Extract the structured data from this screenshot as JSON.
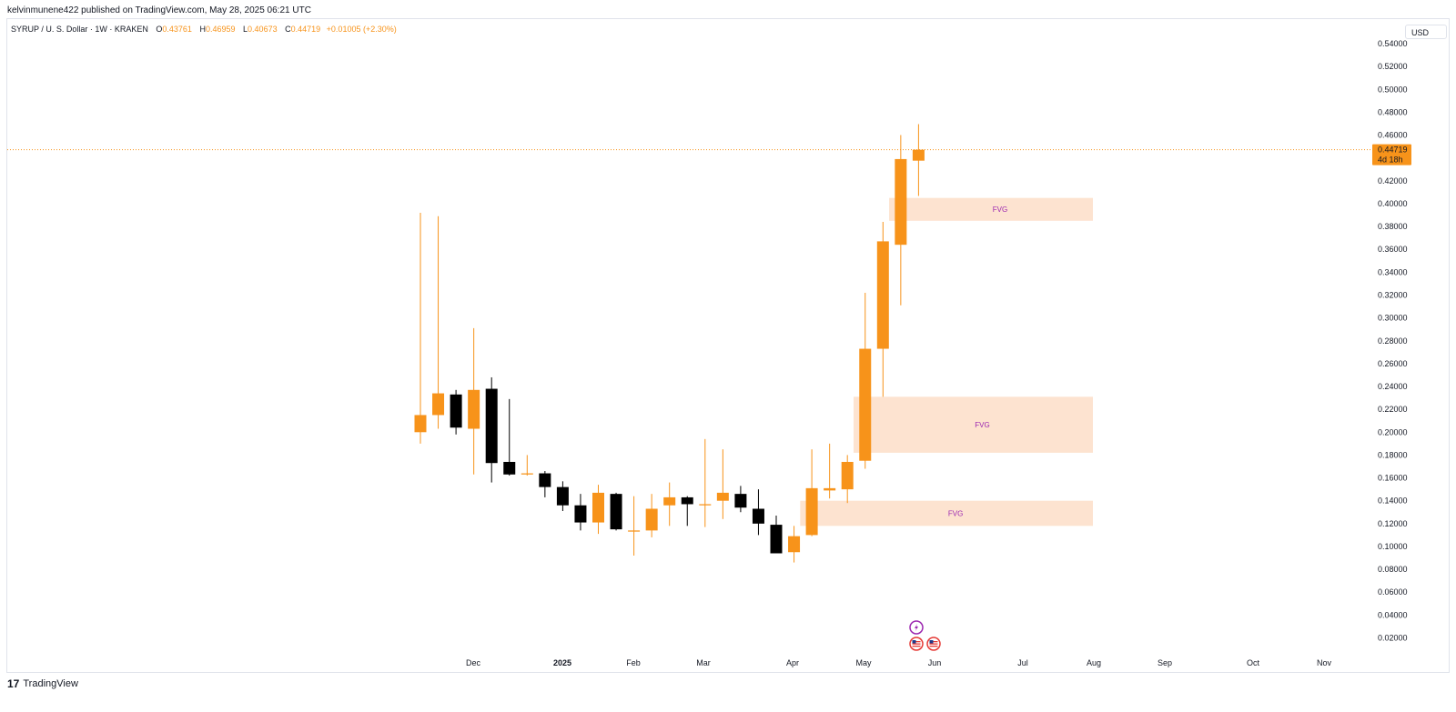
{
  "header": {
    "published_text": "kelvinmunene422 published on TradingView.com, May 28, 2025 06:21 UTC"
  },
  "legend": {
    "symbol_text": "SYRUP / U. S. Dollar · 1W · KRAKEN",
    "open_key": "O",
    "open_value": "0.43761",
    "high_key": "H",
    "high_value": "0.46959",
    "low_key": "L",
    "low_value": "0.40673",
    "close_key": "C",
    "close_value": "0.44719",
    "change_value": "+0.01005 (+2.30%)"
  },
  "currency": "USD",
  "price_label": {
    "price": "0.44719",
    "countdown": "4d 18h"
  },
  "footer": {
    "logo_text": "TradingView"
  },
  "colors": {
    "up": "#f7931a",
    "down": "#000000",
    "fvg_fill": "#fde3d0",
    "fvg_text": "#9c27b0",
    "price_line": "#f7931a"
  },
  "event_icons": [
    "lightning-icon",
    "us-flag-icon",
    "us-flag-icon"
  ],
  "chart_data": {
    "type": "candlestick",
    "ylim": [
      0,
      0.55
    ],
    "yticks": [
      "0.02000",
      "0.04000",
      "0.06000",
      "0.08000",
      "0.10000",
      "0.12000",
      "0.14000",
      "0.16000",
      "0.18000",
      "0.20000",
      "0.22000",
      "0.24000",
      "0.26000",
      "0.28000",
      "0.30000",
      "0.32000",
      "0.34000",
      "0.36000",
      "0.38000",
      "0.40000",
      "0.42000",
      "0.44000",
      "0.46000",
      "0.48000",
      "0.50000",
      "0.52000",
      "0.54000"
    ],
    "xticks": [
      "Dec",
      "2025",
      "Feb",
      "Mar",
      "Apr",
      "May",
      "Jun",
      "Jul",
      "Aug",
      "Sep",
      "Oct",
      "Nov"
    ],
    "candles": [
      {
        "o": 0.2,
        "h": 0.392,
        "l": 0.19,
        "c": 0.215
      },
      {
        "o": 0.215,
        "h": 0.389,
        "l": 0.203,
        "c": 0.234
      },
      {
        "o": 0.233,
        "h": 0.237,
        "l": 0.198,
        "c": 0.204
      },
      {
        "o": 0.203,
        "h": 0.291,
        "l": 0.163,
        "c": 0.237
      },
      {
        "o": 0.238,
        "h": 0.248,
        "l": 0.156,
        "c": 0.173
      },
      {
        "o": 0.174,
        "h": 0.229,
        "l": 0.162,
        "c": 0.163
      },
      {
        "o": 0.163,
        "h": 0.18,
        "l": 0.162,
        "c": 0.164
      },
      {
        "o": 0.164,
        "h": 0.166,
        "l": 0.143,
        "c": 0.152
      },
      {
        "o": 0.152,
        "h": 0.157,
        "l": 0.131,
        "c": 0.136
      },
      {
        "o": 0.136,
        "h": 0.146,
        "l": 0.114,
        "c": 0.121
      },
      {
        "o": 0.121,
        "h": 0.154,
        "l": 0.111,
        "c": 0.147
      },
      {
        "o": 0.146,
        "h": 0.147,
        "l": 0.114,
        "c": 0.115
      },
      {
        "o": 0.113,
        "h": 0.144,
        "l": 0.092,
        "c": 0.114
      },
      {
        "o": 0.114,
        "h": 0.146,
        "l": 0.108,
        "c": 0.133
      },
      {
        "o": 0.136,
        "h": 0.156,
        "l": 0.118,
        "c": 0.143
      },
      {
        "o": 0.143,
        "h": 0.144,
        "l": 0.118,
        "c": 0.137
      },
      {
        "o": 0.136,
        "h": 0.194,
        "l": 0.117,
        "c": 0.137
      },
      {
        "o": 0.14,
        "h": 0.185,
        "l": 0.124,
        "c": 0.147
      },
      {
        "o": 0.146,
        "h": 0.153,
        "l": 0.13,
        "c": 0.134
      },
      {
        "o": 0.133,
        "h": 0.15,
        "l": 0.11,
        "c": 0.12
      },
      {
        "o": 0.119,
        "h": 0.127,
        "l": 0.094,
        "c": 0.094
      },
      {
        "o": 0.095,
        "h": 0.118,
        "l": 0.086,
        "c": 0.109
      },
      {
        "o": 0.11,
        "h": 0.185,
        "l": 0.109,
        "c": 0.151
      },
      {
        "o": 0.149,
        "h": 0.19,
        "l": 0.142,
        "c": 0.151
      },
      {
        "o": 0.15,
        "h": 0.18,
        "l": 0.138,
        "c": 0.174
      },
      {
        "o": 0.175,
        "h": 0.322,
        "l": 0.168,
        "c": 0.273
      },
      {
        "o": 0.273,
        "h": 0.384,
        "l": 0.231,
        "c": 0.367
      },
      {
        "o": 0.364,
        "h": 0.46,
        "l": 0.311,
        "c": 0.439
      },
      {
        "o": 0.43761,
        "h": 0.46959,
        "l": 0.40673,
        "c": 0.44719
      }
    ],
    "fvg_zones": [
      {
        "label": "FVG",
        "top": 0.405,
        "bottom": 0.385,
        "start_index": 26.5
      },
      {
        "label": "FVG",
        "top": 0.231,
        "bottom": 0.182,
        "start_index": 24.5
      },
      {
        "label": "FVG",
        "top": 0.14,
        "bottom": 0.118,
        "start_index": 21.5
      }
    ],
    "last_price": 0.44719
  }
}
